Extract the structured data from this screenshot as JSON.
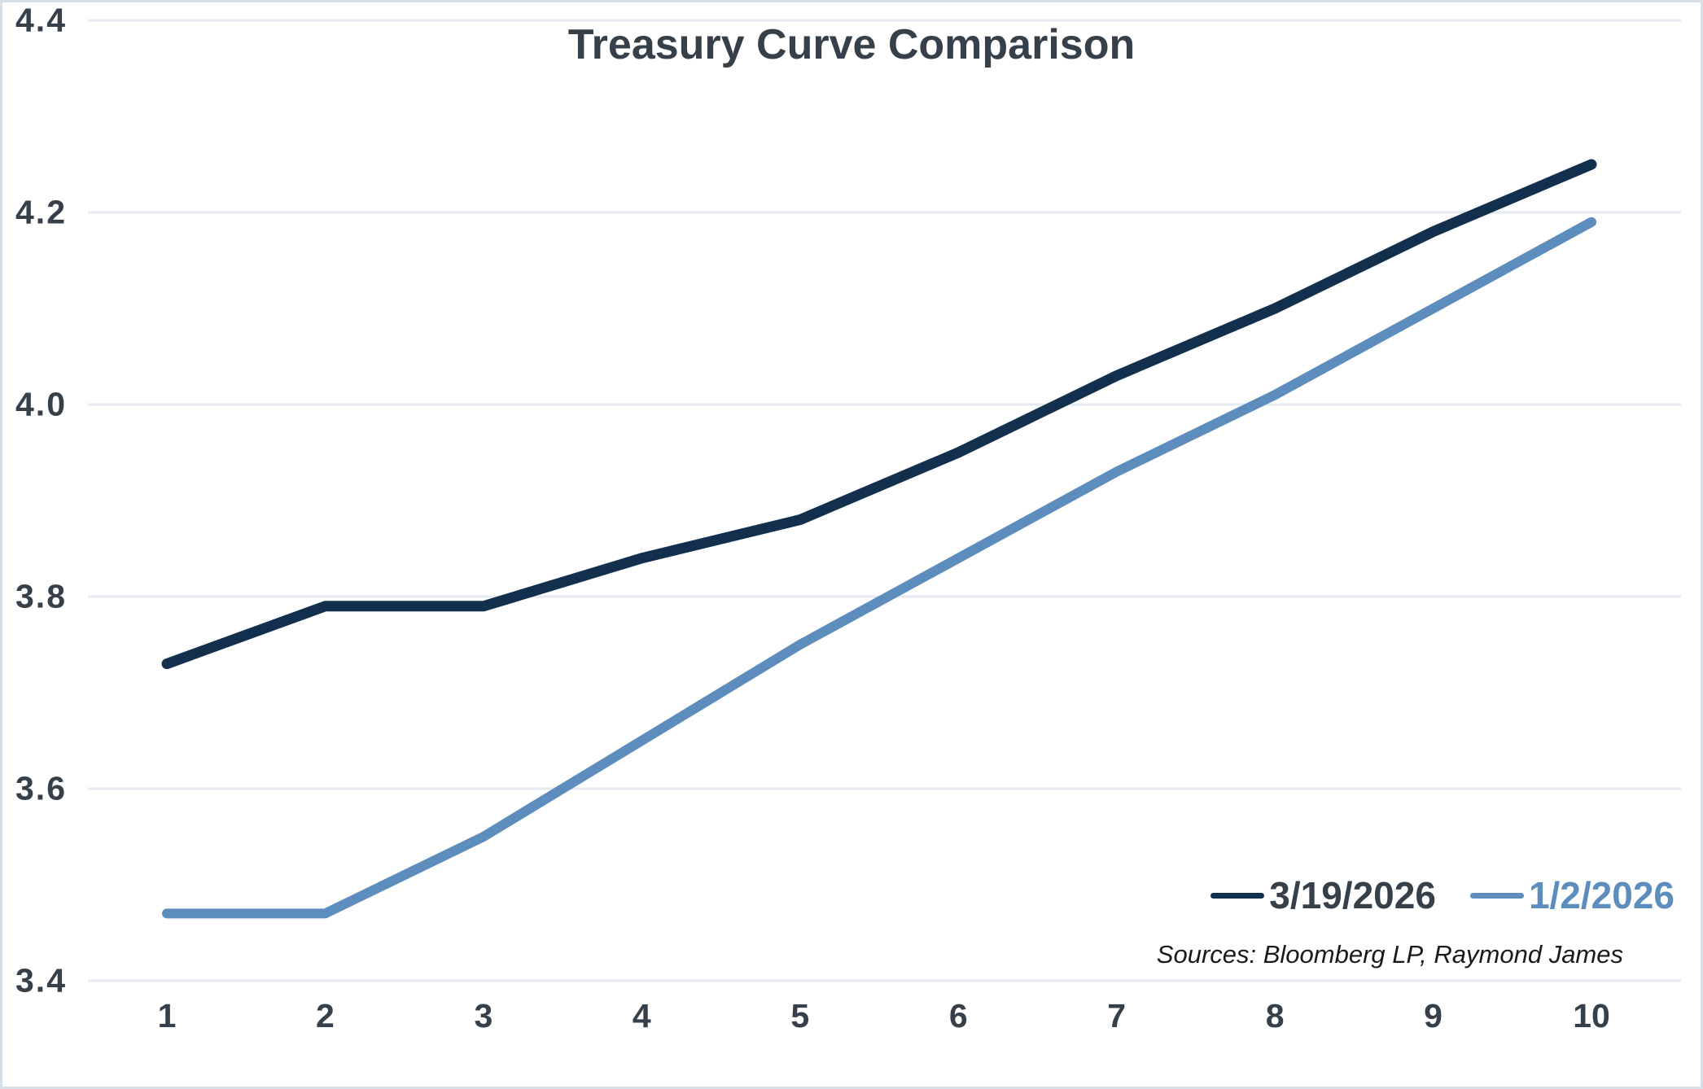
{
  "chart_data": {
    "type": "line",
    "title": "Treasury Curve Comparison",
    "x": [
      1,
      2,
      3,
      4,
      5,
      6,
      7,
      8,
      9,
      10
    ],
    "x_tick_labels": [
      "1",
      "2",
      "3",
      "4",
      "5",
      "6",
      "7",
      "8",
      "9",
      "10"
    ],
    "series": [
      {
        "name": "3/19/2026",
        "color": "#12304e",
        "values": [
          3.73,
          3.79,
          3.79,
          3.84,
          3.88,
          3.95,
          4.03,
          4.1,
          4.18,
          4.25
        ]
      },
      {
        "name": "1/2/2026",
        "color": "#5c8dbc",
        "values": [
          3.47,
          3.47,
          3.55,
          3.65,
          3.75,
          3.84,
          3.93,
          4.01,
          4.1,
          4.19
        ]
      }
    ],
    "ylim": [
      3.4,
      4.4
    ],
    "yticks": [
      3.4,
      3.6,
      3.8,
      4.0,
      4.2,
      4.4
    ],
    "ytick_labels": [
      "3.4",
      "3.6",
      "3.8",
      "4.0",
      "4.2",
      "4.4"
    ],
    "grid": true,
    "gridline_color": "#e4eaef",
    "legend_position": "bottom-right",
    "source_note": "Sources: Bloomberg LP, Raymond James",
    "title_color": "#36404a",
    "frame_border_color": "#d7e0e7"
  }
}
